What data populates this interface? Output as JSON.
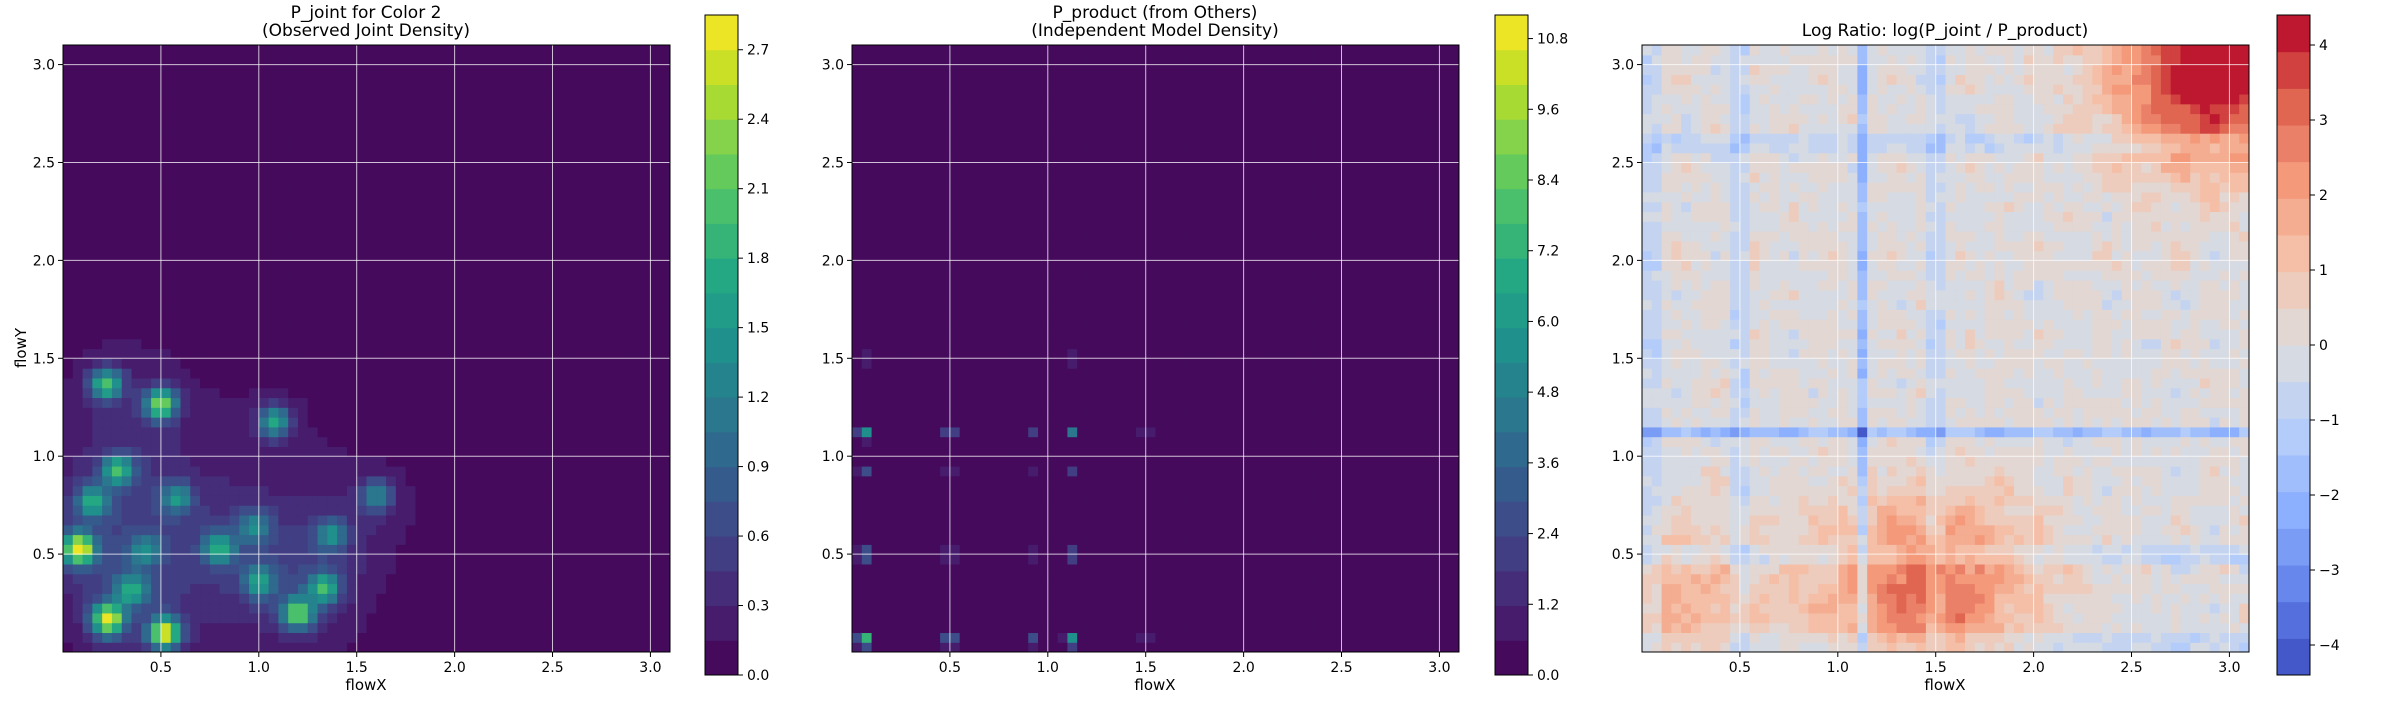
{
  "figure": {
    "panels": [
      {
        "title_line1": "P_joint for Color 2",
        "title_line2": "(Observed Joint Density)",
        "xlabel": "flowX",
        "ylabel": "flowY",
        "colorbar_ticks": [
          "0.0",
          "0.3",
          "0.6",
          "0.9",
          "1.2",
          "1.5",
          "1.8",
          "2.1",
          "2.4",
          "2.7"
        ]
      },
      {
        "title_line1": "P_product (from Others)",
        "title_line2": "(Independent Model Density)",
        "xlabel": "flowX",
        "ylabel": "",
        "colorbar_ticks": [
          "0.0",
          "1.2",
          "2.4",
          "3.6",
          "4.8",
          "6.0",
          "7.2",
          "8.4",
          "9.6",
          "10.8"
        ]
      },
      {
        "title_line1": "Log Ratio: log(P_joint / P_product)",
        "title_line2": "",
        "xlabel": "flowX",
        "ylabel": "",
        "colorbar_ticks": [
          "−4",
          "−3",
          "−2",
          "−1",
          "0",
          "1",
          "2",
          "3",
          "4"
        ]
      }
    ]
  },
  "chart_data": [
    {
      "type": "heatmap",
      "title": "P_joint for Color 2 (Observed Joint Density)",
      "xlabel": "flowX",
      "ylabel": "flowY",
      "xlim": [
        0.0,
        3.1
      ],
      "ylim": [
        0.0,
        3.1
      ],
      "xticks": [
        0.5,
        1.0,
        1.5,
        2.0,
        2.5,
        3.0
      ],
      "yticks": [
        0.5,
        1.0,
        1.5,
        2.0,
        2.5,
        3.0
      ],
      "grid": true,
      "colormap": "viridis",
      "colorbar_range": [
        0.0,
        2.85
      ],
      "colorbar_ticks": [
        0.0,
        0.3,
        0.6,
        0.9,
        1.2,
        1.5,
        1.8,
        2.1,
        2.4,
        2.7
      ],
      "peaks": [
        {
          "x": 0.08,
          "y": 0.53,
          "value": 2.7
        },
        {
          "x": 0.23,
          "y": 0.17,
          "value": 2.5
        },
        {
          "x": 0.52,
          "y": 0.1,
          "value": 2.5
        },
        {
          "x": 0.5,
          "y": 1.27,
          "value": 2.1
        },
        {
          "x": 0.22,
          "y": 1.37,
          "value": 1.8
        },
        {
          "x": 1.2,
          "y": 0.2,
          "value": 1.9
        },
        {
          "x": 0.28,
          "y": 0.93,
          "value": 1.5
        },
        {
          "x": 0.15,
          "y": 0.77,
          "value": 1.4
        },
        {
          "x": 0.35,
          "y": 0.32,
          "value": 1.3
        },
        {
          "x": 0.8,
          "y": 0.53,
          "value": 1.4
        },
        {
          "x": 1.08,
          "y": 1.18,
          "value": 1.5
        },
        {
          "x": 1.33,
          "y": 0.33,
          "value": 1.5
        },
        {
          "x": 1.0,
          "y": 0.36,
          "value": 1.2
        },
        {
          "x": 1.37,
          "y": 0.6,
          "value": 1.1
        },
        {
          "x": 1.6,
          "y": 0.8,
          "value": 1.1
        },
        {
          "x": 0.58,
          "y": 0.79,
          "value": 1.1
        },
        {
          "x": 0.98,
          "y": 0.64,
          "value": 1.0
        },
        {
          "x": 0.42,
          "y": 0.52,
          "value": 0.9
        }
      ]
    },
    {
      "type": "heatmap",
      "title": "P_product (from Others) (Independent Model Density)",
      "xlabel": "flowX",
      "ylabel": "",
      "xlim": [
        0.0,
        3.1
      ],
      "ylim": [
        0.0,
        3.1
      ],
      "xticks": [
        0.5,
        1.0,
        1.5,
        2.0,
        2.5,
        3.0
      ],
      "yticks": [
        0.5,
        1.0,
        1.5,
        2.0,
        2.5,
        3.0
      ],
      "grid": true,
      "colormap": "viridis",
      "colorbar_range": [
        0.0,
        11.2
      ],
      "colorbar_ticks": [
        0.0,
        1.2,
        2.4,
        3.6,
        4.8,
        6.0,
        7.2,
        8.4,
        9.6,
        10.8
      ],
      "marginal_peaks": [
        0.06,
        0.5,
        0.92,
        1.12,
        1.5
      ],
      "peaks": [
        {
          "x": 0.06,
          "y": 0.06,
          "value": 10.8
        },
        {
          "x": 0.06,
          "y": 1.12,
          "value": 4.5
        },
        {
          "x": 0.5,
          "y": 0.06,
          "value": 4.0
        },
        {
          "x": 1.12,
          "y": 1.12,
          "value": 3.5
        },
        {
          "x": 0.5,
          "y": 0.5,
          "value": 2.5
        }
      ]
    },
    {
      "type": "heatmap",
      "title": "Log Ratio: log(P_joint / P_product)",
      "xlabel": "flowX",
      "ylabel": "",
      "xlim": [
        0.0,
        3.1
      ],
      "ylim": [
        0.0,
        3.1
      ],
      "xticks": [
        0.5,
        1.0,
        1.5,
        2.0,
        2.5,
        3.0
      ],
      "yticks": [
        0.5,
        1.0,
        1.5,
        2.0,
        2.5,
        3.0
      ],
      "grid": true,
      "colormap": "coolwarm",
      "colorbar_range": [
        -4.4,
        4.4
      ],
      "colorbar_ticks": [
        -4,
        -3,
        -2,
        -1,
        0,
        1,
        2,
        3,
        4
      ],
      "high_regions": [
        {
          "x": 2.9,
          "y": 2.95,
          "value": 4.0
        },
        {
          "x": 0.2,
          "y": 0.2,
          "value": 1.5
        },
        {
          "x": 1.25,
          "y": 0.3,
          "value": 1.5
        },
        {
          "x": 1.6,
          "y": 0.35,
          "value": 2.0
        }
      ],
      "low_lines_x": [
        0.05,
        0.5,
        1.12,
        1.5
      ],
      "low_lines_y": [
        0.05,
        0.5,
        1.12,
        2.6
      ]
    }
  ]
}
